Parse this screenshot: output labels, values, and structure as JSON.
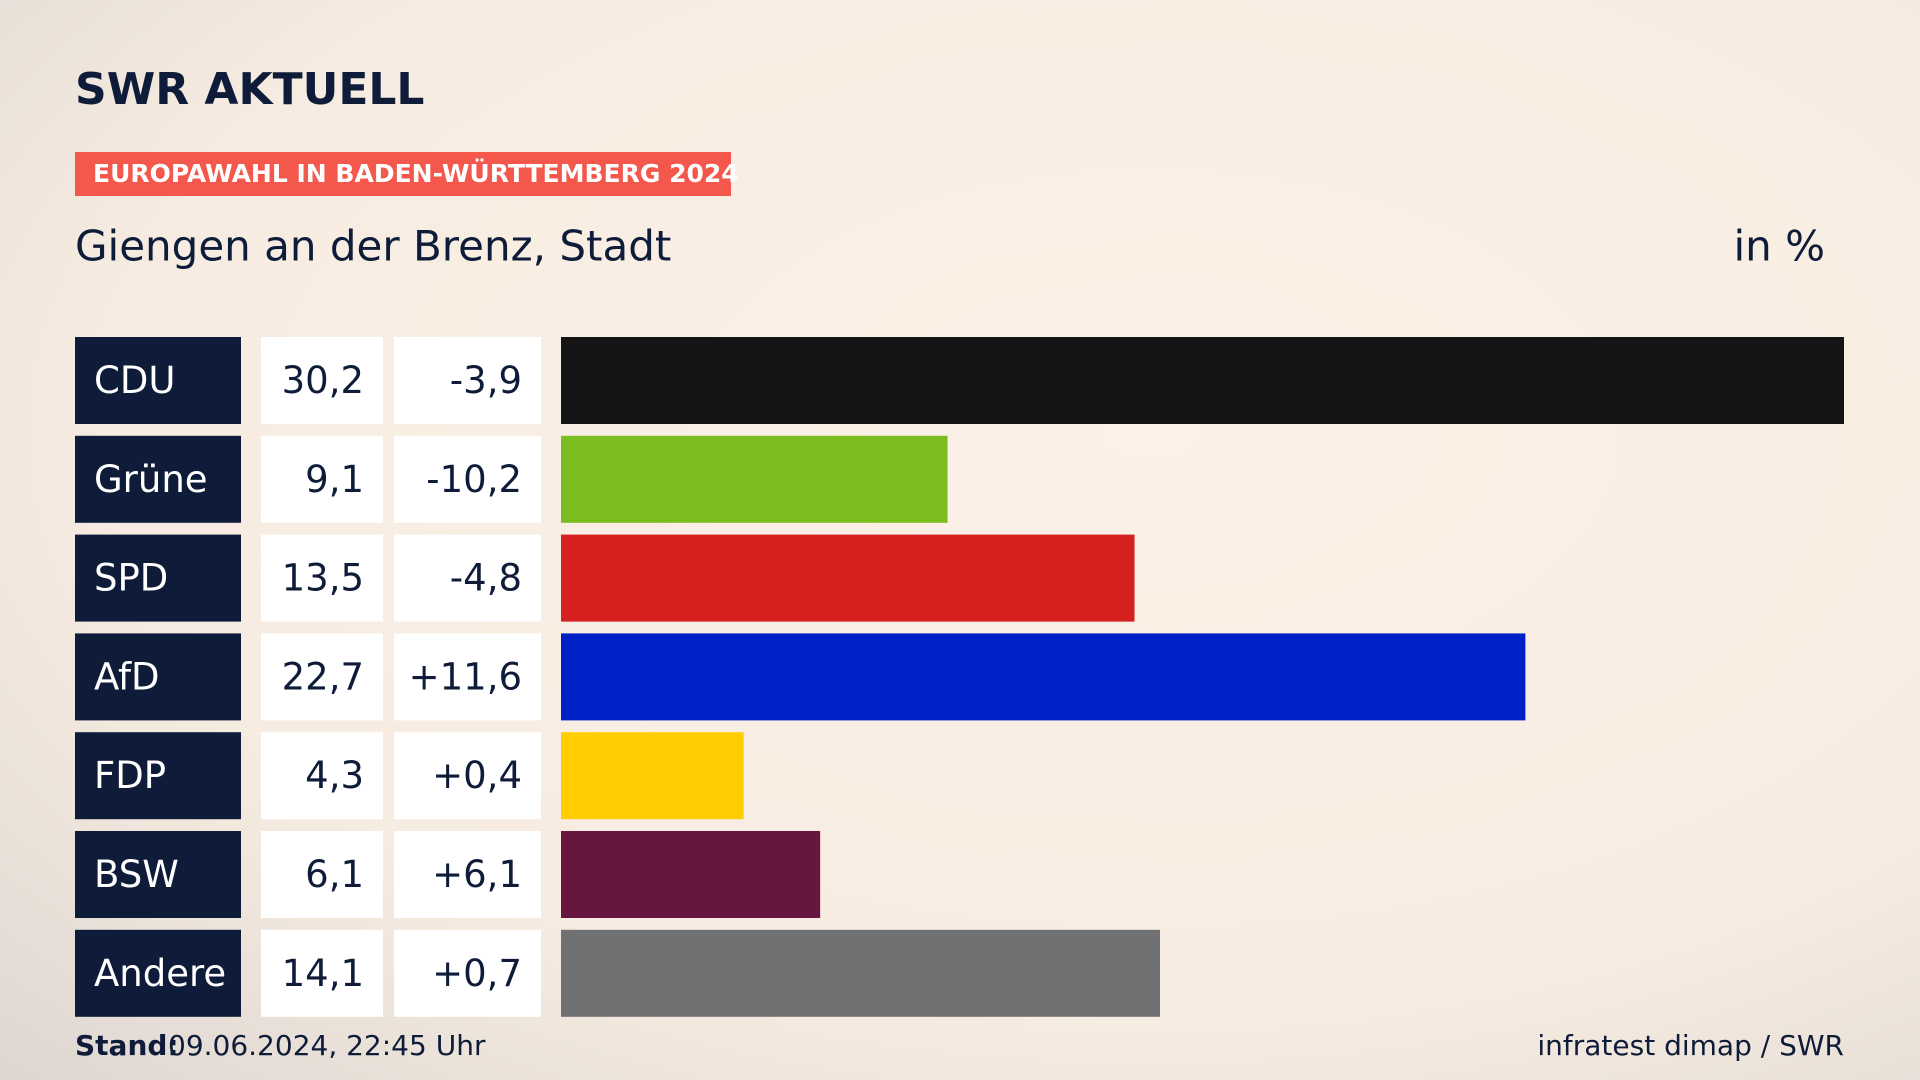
{
  "header": {
    "logo": "SWR AKTUELL",
    "badge": "EUROPAWAHL IN BADEN-WÜRTTEMBERG 2024"
  },
  "chart_data": {
    "type": "bar",
    "title": "Giengen an der Brenz, Stadt",
    "unit": "in %",
    "categories": [
      "CDU",
      "Grüne",
      "SPD",
      "AfD",
      "FDP",
      "BSW",
      "Andere"
    ],
    "values": [
      30.2,
      9.1,
      13.5,
      22.7,
      4.3,
      6.1,
      14.1
    ],
    "value_labels": [
      "30,2",
      "9,1",
      "13,5",
      "22,7",
      "4,3",
      "6,1",
      "14,1"
    ],
    "changes": [
      -3.9,
      -10.2,
      -4.8,
      11.6,
      0.4,
      6.1,
      0.7
    ],
    "change_labels": [
      "-3,9",
      "-10,2",
      "-4,8",
      "+11,6",
      "+0,4",
      "+6,1",
      "+0,7"
    ],
    "colors": [
      "#141414",
      "#7bbd1e",
      "#d61f1f",
      "#0021c8",
      "#ffcd00",
      "#67163f",
      "#707172"
    ],
    "xlim": [
      0,
      30.2
    ]
  },
  "footer": {
    "stand_label": "Stand:",
    "stand": "09.06.2024, 22:45 Uhr",
    "source": "infratest dimap / SWR"
  }
}
